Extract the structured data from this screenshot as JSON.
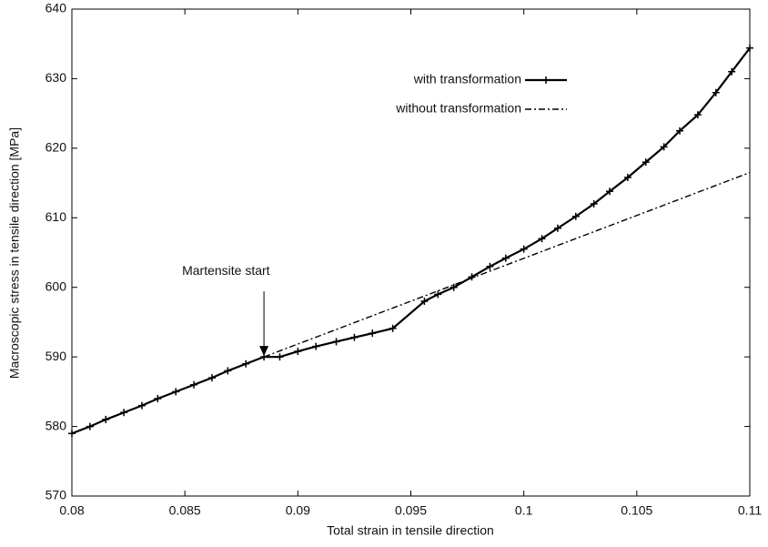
{
  "chart_data": {
    "type": "line",
    "xlabel": "Total strain in tensile direction",
    "ylabel": "Macroscopic stress in tensile direction [MPa]",
    "annotation": "Martensite start",
    "xlim": [
      0.08,
      0.11
    ],
    "ylim": [
      570,
      640
    ],
    "xticks": [
      0.08,
      0.085,
      0.09,
      0.095,
      0.1,
      0.105,
      0.11
    ],
    "yticks": [
      570,
      580,
      590,
      600,
      610,
      620,
      630,
      640
    ],
    "legend": "upper right",
    "series": [
      {
        "name": "with transformation",
        "color": "#000000",
        "style": "solid",
        "marker": "plus",
        "x": [
          0.08,
          0.0808,
          0.0815,
          0.0823,
          0.0831,
          0.0838,
          0.0846,
          0.0854,
          0.0862,
          0.0869,
          0.0877,
          0.0885,
          0.0892,
          0.09,
          0.0908,
          0.0917,
          0.0925,
          0.0933,
          0.0942,
          0.0956,
          0.0962,
          0.0969,
          0.0977,
          0.0985,
          0.0992,
          0.1,
          0.1008,
          0.1015,
          0.1023,
          0.1031,
          0.1038,
          0.1046,
          0.1054,
          0.1062,
          0.1069,
          0.1077,
          0.1085,
          0.1092,
          0.11
        ],
        "values": [
          579,
          580,
          581,
          582,
          583,
          584,
          585,
          586,
          587,
          588,
          589,
          590,
          590,
          590.8,
          591.5,
          592.2,
          592.8,
          593.4,
          594.1,
          598,
          599,
          600,
          601.5,
          603,
          604.2,
          605.5,
          607,
          608.5,
          610.2,
          612,
          613.8,
          615.8,
          618,
          620.2,
          622.5,
          624.8,
          628,
          631,
          634.4
        ]
      },
      {
        "name": "without transformation",
        "color": "#000000",
        "style": "dashdot",
        "marker": "none",
        "x": [
          0.0885,
          0.11
        ],
        "values": [
          590,
          616.5
        ]
      }
    ]
  }
}
